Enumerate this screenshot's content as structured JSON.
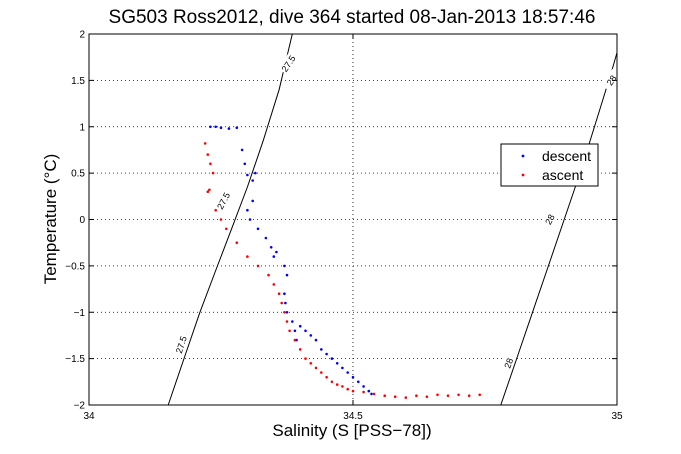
{
  "chart_data": {
    "type": "scatter",
    "title": "SG503 Ross2012, dive 364 started 08-Jan-2013 18:57:46",
    "xlabel": "Salinity (S [PSS−78])",
    "ylabel": "Temperature (°C)",
    "xlim": [
      34,
      35
    ],
    "ylim": [
      -2,
      2
    ],
    "grid": true,
    "legend_position": "right",
    "x_ticks": [
      34,
      34.5,
      35
    ],
    "x_tick_labels": [
      "34",
      "34.5",
      "35"
    ],
    "y_ticks": [
      -2,
      -1.5,
      -1,
      -0.5,
      0,
      0.5,
      1,
      1.5,
      2
    ],
    "y_tick_labels": [
      "−2",
      "−1.5",
      "−1",
      "−0.5",
      "0",
      "0.5",
      "1",
      "1.5",
      "2"
    ],
    "contours": [
      {
        "name": "27.5",
        "color": "#000000",
        "x": [
          34.15,
          34.18,
          34.21,
          34.24,
          34.27,
          34.3,
          34.33,
          34.36,
          34.385
        ],
        "y": [
          -2.0,
          -1.5,
          -1.0,
          -0.55,
          -0.1,
          0.35,
          0.85,
          1.4,
          2.0
        ],
        "labels": [
          {
            "text": "27.5",
            "x": 34.175,
            "y": -1.35,
            "angle": -72
          },
          {
            "text": "27.5",
            "x": 34.255,
            "y": 0.2,
            "angle": -62
          },
          {
            "text": "27.5",
            "x": 34.378,
            "y": 1.68,
            "angle": -56
          }
        ]
      },
      {
        "name": "28",
        "color": "#000000",
        "x": [
          34.78,
          34.81,
          34.84,
          34.87,
          34.9,
          34.93,
          34.96,
          34.99,
          35.0
        ],
        "y": [
          -2.0,
          -1.5,
          -1.0,
          -0.5,
          0.0,
          0.5,
          1.05,
          1.6,
          1.8
        ],
        "labels": [
          {
            "text": "28",
            "x": 34.795,
            "y": -1.55,
            "angle": -70
          },
          {
            "text": "28",
            "x": 34.873,
            "y": 0.0,
            "angle": -62
          },
          {
            "text": "28",
            "x": 34.99,
            "y": 1.5,
            "angle": -55
          }
        ]
      }
    ],
    "series": [
      {
        "name": "descent",
        "color": "#0000ff",
        "x": [
          34.23,
          34.24,
          34.25,
          34.265,
          34.28,
          34.29,
          34.295,
          34.3,
          34.31,
          34.315,
          34.31,
          34.3,
          34.305,
          34.32,
          34.335,
          34.345,
          34.35,
          34.355,
          34.37,
          34.375,
          34.37,
          34.372,
          34.375,
          34.385,
          34.39,
          34.393,
          34.4,
          34.41,
          34.42,
          34.43,
          34.44,
          34.45,
          34.46,
          34.47,
          34.48,
          34.49,
          34.5,
          34.51,
          34.52,
          34.53,
          34.535
        ],
        "y": [
          1.0,
          1.0,
          0.99,
          0.98,
          0.99,
          0.75,
          0.6,
          0.48,
          0.42,
          0.5,
          0.2,
          0.1,
          0.0,
          -0.1,
          -0.2,
          -0.3,
          -0.4,
          -0.35,
          -0.5,
          -0.6,
          -0.8,
          -0.9,
          -1.0,
          -1.1,
          -1.2,
          -1.3,
          -1.15,
          -1.2,
          -1.25,
          -1.3,
          -1.4,
          -1.45,
          -1.5,
          -1.55,
          -1.6,
          -1.65,
          -1.7,
          -1.75,
          -1.8,
          -1.85,
          -1.88
        ]
      },
      {
        "name": "ascent",
        "color": "#ff0000",
        "x": [
          34.22,
          34.225,
          34.23,
          34.235,
          34.228,
          34.225,
          34.24,
          34.25,
          34.26,
          34.28,
          34.3,
          34.32,
          34.34,
          34.35,
          34.36,
          34.365,
          34.37,
          34.375,
          34.38,
          34.39,
          34.4,
          34.41,
          34.42,
          34.43,
          34.44,
          34.45,
          34.46,
          34.47,
          34.48,
          34.49,
          34.5,
          34.52,
          34.54,
          34.56,
          34.58,
          34.6,
          34.62,
          34.64,
          34.66,
          34.68,
          34.7,
          34.72,
          34.74
        ],
        "y": [
          0.82,
          0.7,
          0.6,
          0.5,
          0.32,
          0.3,
          0.1,
          0.0,
          -0.1,
          -0.25,
          -0.4,
          -0.5,
          -0.6,
          -0.7,
          -0.8,
          -0.9,
          -1.0,
          -1.1,
          -1.2,
          -1.3,
          -1.4,
          -1.5,
          -1.55,
          -1.6,
          -1.65,
          -1.7,
          -1.75,
          -1.78,
          -1.8,
          -1.83,
          -1.85,
          -1.86,
          -1.88,
          -1.9,
          -1.91,
          -1.92,
          -1.9,
          -1.91,
          -1.89,
          -1.9,
          -1.89,
          -1.9,
          -1.89
        ]
      }
    ]
  }
}
